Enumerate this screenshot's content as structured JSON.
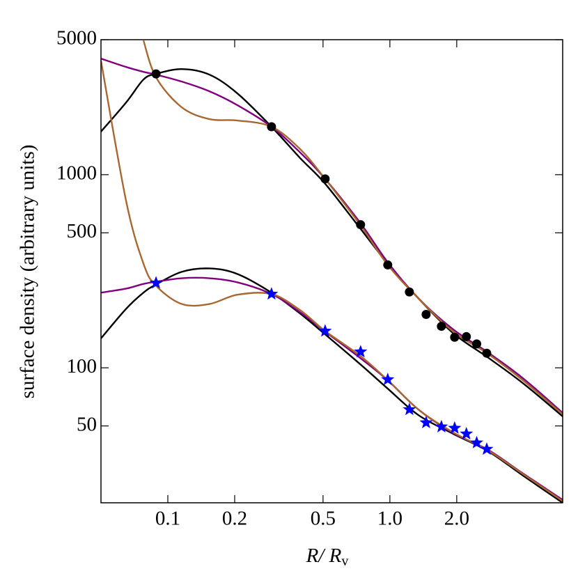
{
  "chart_data": {
    "type": "line",
    "ylabel": "surface density (arbitrary units)",
    "xlabel": "R/ R",
    "xlabel_sub": "v",
    "xlog": true,
    "ylog": true,
    "xlim": [
      0.05,
      6.0
    ],
    "ylim": [
      20,
      5000
    ],
    "xticks": [
      0.1,
      0.2,
      0.5,
      {
        "value": 1,
        "label": "1.0"
      },
      {
        "value": 2,
        "label": "2.0"
      }
    ],
    "yticks": [
      50,
      100,
      500,
      1000,
      5000
    ],
    "x": [
      0.05,
      0.0649,
      0.0777,
      0.0885,
      0.1155,
      0.154,
      0.2058,
      0.293,
      0.394,
      0.511,
      0.738,
      0.978,
      1.344,
      1.929,
      2.767,
      3.97,
      6.0
    ],
    "series": [
      {
        "kind": "line",
        "color": "#000000",
        "values": [
          1671,
          2366,
          3110,
          3325,
          3523,
          3296,
          2635,
          1771,
          1220,
          898,
          524,
          346,
          229,
          151,
          113,
          83.3,
          56.0
        ]
      },
      {
        "kind": "line",
        "color": "#800080",
        "values": [
          3990,
          3611,
          3408,
          3296,
          3034,
          2702,
          2290,
          1771,
          1304,
          951,
          560,
          352,
          229,
          158,
          120,
          88.4,
          58.4
        ]
      },
      {
        "kind": "line",
        "color": "#a8672f",
        "values": [
          null,
          null,
          4950,
          3190,
          2234,
          1940,
          1908,
          1771,
          1358,
          951,
          546,
          341,
          229,
          154,
          118,
          86.2,
          57.4
        ]
      },
      {
        "kind": "line",
        "color": "#000000",
        "values": [
          142,
          202,
          245,
          270,
          314,
          327,
          306,
          245,
          191,
          149,
          104,
          78,
          56.9,
          45.5,
          37.0,
          27.7,
          20.0
        ]
      },
      {
        "kind": "line",
        "color": "#800080",
        "values": [
          245,
          257,
          272,
          279,
          291,
          291,
          277,
          241,
          194,
          154,
          112,
          86.2,
          60.8,
          45.9,
          37.6,
          28.4,
          20.7
        ]
      },
      {
        "kind": "line",
        "color": "#a8672f",
        "values": [
          3890,
          730,
          346,
          266,
          214,
          214,
          239,
          241,
          199,
          155,
          115,
          86.2,
          60.8,
          46.3,
          37.3,
          28.2,
          20.4
        ]
      },
      {
        "kind": "scatter",
        "marker": "circle",
        "color": "#000000",
        "x": [
          0.0885,
          0.293,
          0.511,
          0.738,
          0.978,
          1.224,
          1.456,
          1.706,
          1.957,
          2.21,
          2.46,
          2.73
        ],
        "values": [
          3325,
          1771,
          951,
          551,
          341,
          247,
          189,
          164,
          144,
          145,
          133,
          119
        ]
      },
      {
        "kind": "scatter",
        "marker": "star",
        "color": "#0000ff",
        "x": [
          0.0885,
          0.293,
          0.511,
          0.738,
          0.978,
          1.224,
          1.456,
          1.706,
          1.957,
          2.21,
          2.46,
          2.73
        ],
        "values": [
          275,
          241,
          155,
          121,
          86.9,
          60.8,
          52,
          49.5,
          48.7,
          45.5,
          40.9,
          37.9
        ]
      }
    ]
  }
}
